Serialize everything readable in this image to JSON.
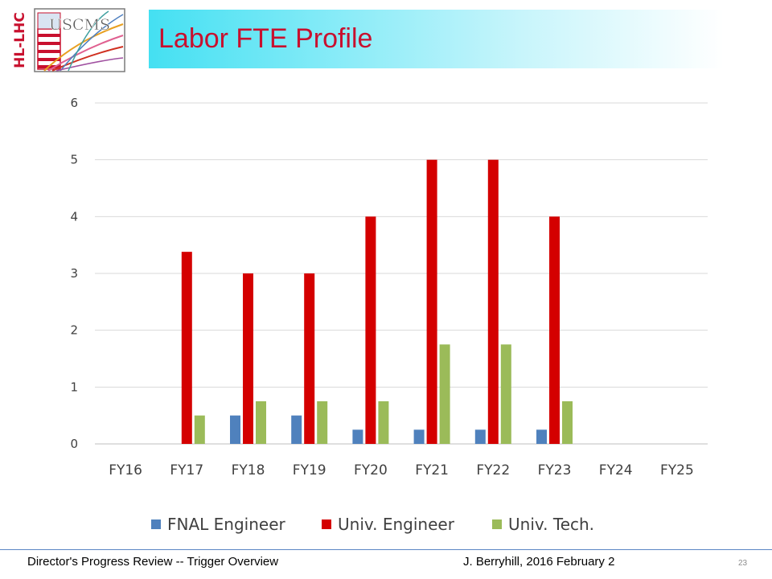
{
  "slide": {
    "title": "Labor FTE Profile",
    "logo_side_text": "HL-LHC",
    "logo_text": "USCMS",
    "footer_left": "Director's Progress Review -- Trigger Overview",
    "footer_right": "J. Berryhill, 2016 February 2",
    "page_number": "23"
  },
  "colors": {
    "title": "#c8102e",
    "fnal": "#4f81bd",
    "univ_eng": "#d40000",
    "univ_tech": "#9bbb59",
    "grid": "#d9d9d9"
  },
  "chart_data": {
    "type": "bar",
    "title": "",
    "xlabel": "",
    "ylabel": "",
    "categories": [
      "FY16",
      "FY17",
      "FY18",
      "FY19",
      "FY20",
      "FY21",
      "FY22",
      "FY23",
      "FY24",
      "FY25"
    ],
    "series": [
      {
        "name": "FNAL Engineer",
        "color": "#4f81bd",
        "values": [
          0,
          0,
          0.5,
          0.5,
          0.25,
          0.25,
          0.25,
          0.25,
          0,
          0
        ]
      },
      {
        "name": "Univ. Engineer",
        "color": "#d40000",
        "values": [
          0,
          3.38,
          3,
          3,
          4,
          5,
          5,
          4,
          0,
          0
        ]
      },
      {
        "name": "Univ. Tech.",
        "color": "#9bbb59",
        "values": [
          0,
          0.5,
          0.75,
          0.75,
          0.75,
          1.75,
          1.75,
          0.75,
          0,
          0
        ]
      }
    ],
    "ylim": [
      0,
      6
    ],
    "yticks": [
      0,
      1,
      2,
      3,
      4,
      5,
      6
    ],
    "grid": true,
    "legend_position": "bottom"
  }
}
